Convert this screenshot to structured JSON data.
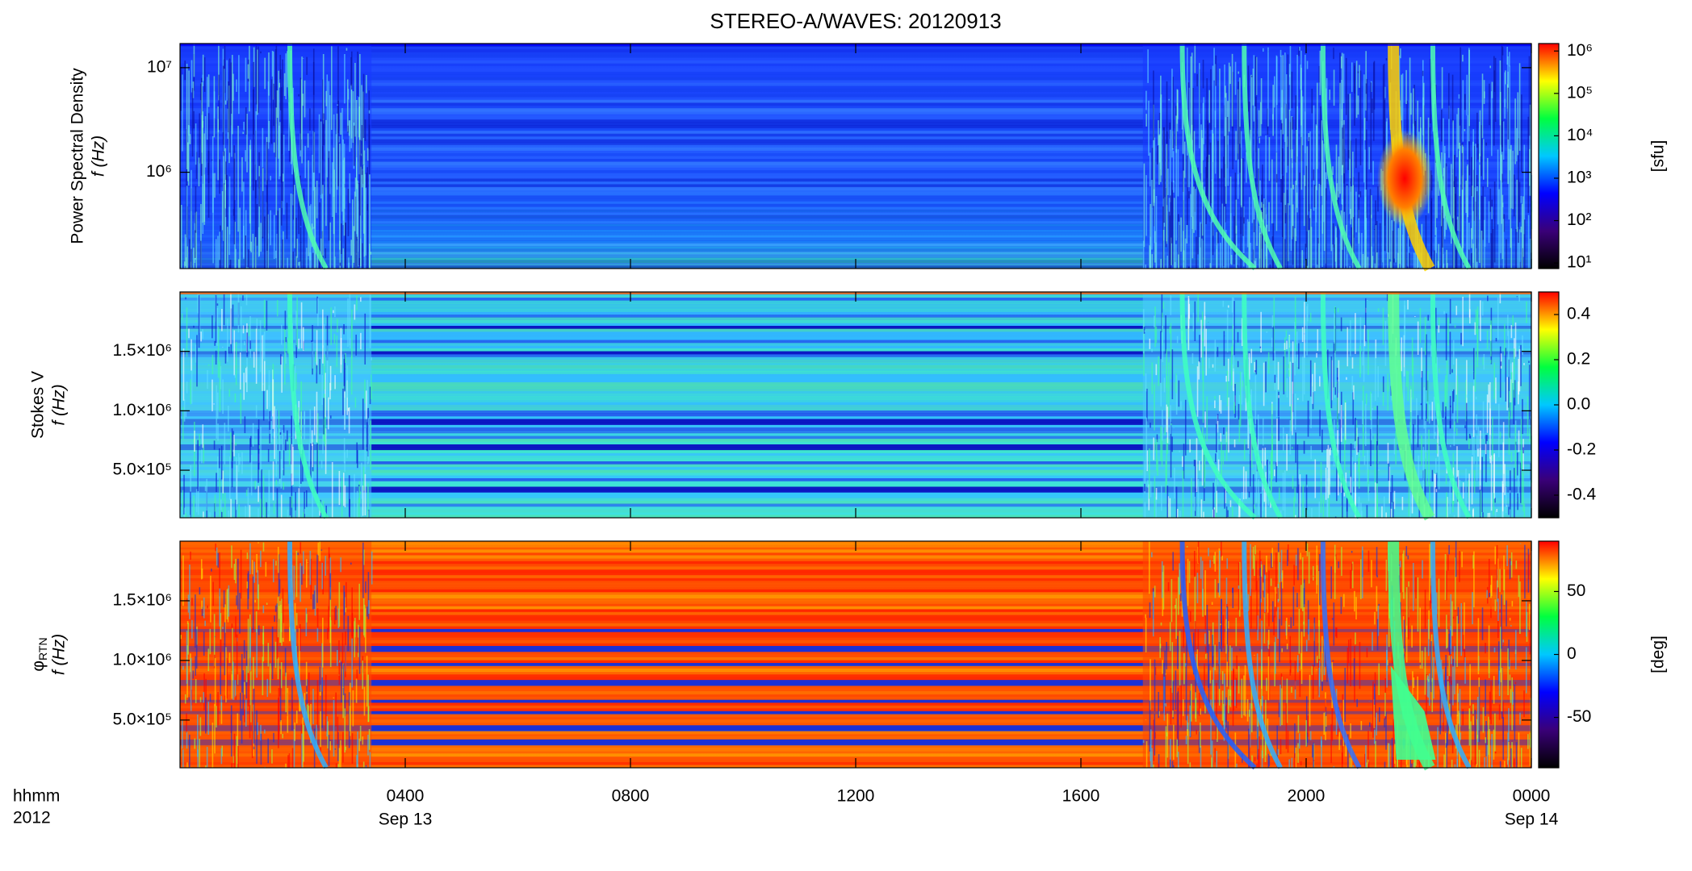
{
  "chart_data": [
    {
      "type": "heatmap",
      "title": "STEREO-A/WAVES: 20120913",
      "ylabel": [
        "Power Spectral Density",
        "f (Hz)"
      ],
      "ylog": true,
      "ylim": [
        120000,
        17000000
      ],
      "yticks": [
        {
          "value": 1000000,
          "label": "10⁶"
        },
        {
          "value": 10000000,
          "label": "10⁷"
        }
      ],
      "clog": true,
      "clim": [
        7.4,
        1500000
      ],
      "cticks": [
        {
          "value": 10,
          "label": "10¹"
        },
        {
          "value": 100,
          "label": "10²"
        },
        {
          "value": 1000,
          "label": "10³"
        },
        {
          "value": 10000,
          "label": "10⁴"
        },
        {
          "value": 100000,
          "label": "10⁵"
        },
        {
          "value": 1000000,
          "label": "10⁶"
        }
      ],
      "clabel": "[sfu]",
      "colormap": [
        "#000000",
        "#3a0078",
        "#0000ff",
        "#00c8ff",
        "#00ff40",
        "#ffff00",
        "#ff0000"
      ]
    },
    {
      "type": "heatmap",
      "ylabel": [
        "Stokes V",
        "f (Hz)"
      ],
      "ylim": [
        100000,
        2000000
      ],
      "yticks": [
        {
          "value": 500000,
          "label": "5.0×10⁵"
        },
        {
          "value": 1000000,
          "label": "1.0×10⁶"
        },
        {
          "value": 1500000,
          "label": "1.5×10⁶"
        }
      ],
      "clim": [
        -0.5,
        0.5
      ],
      "cticks": [
        -0.4,
        -0.2,
        {
          "value": 0,
          "label": "0.0"
        },
        0.2,
        0.4
      ],
      "colormap": [
        "#000000",
        "#3a0078",
        "#0000ff",
        "#00c8ff",
        "#00ff40",
        "#ffff00",
        "#ff0000"
      ]
    },
    {
      "type": "heatmap",
      "ylabel_symbol": "φ",
      "ylabel_subscript": "RTN",
      "ylabel": [
        "f (Hz)"
      ],
      "ylim": [
        100000,
        2000000
      ],
      "yticks": [
        {
          "value": 500000,
          "label": "5.0×10⁵"
        },
        {
          "value": 1000000,
          "label": "1.0×10⁶"
        },
        {
          "value": 1500000,
          "label": "1.5×10⁶"
        }
      ],
      "clim": [
        -90,
        90
      ],
      "cticks": [
        -50,
        0,
        50
      ],
      "clabel": "[deg]",
      "colormap": [
        "#000000",
        "#3a0078",
        "#0000ff",
        "#00c8ff",
        "#00ff40",
        "#ffff00",
        "#ff0000"
      ],
      "xlim": [
        0,
        24
      ],
      "xticks": [
        {
          "value": 4,
          "label": "0400"
        },
        {
          "value": 8,
          "label": "0800"
        },
        {
          "value": 12,
          "label": "1200"
        },
        {
          "value": 16,
          "label": "1600"
        },
        {
          "value": 20,
          "label": "2000"
        },
        {
          "value": 24,
          "label": "0000"
        }
      ],
      "xdate_labels": [
        {
          "value": 4,
          "label": "Sep 13"
        },
        {
          "value": 24,
          "label": "Sep 14"
        }
      ],
      "xlabel": [
        "hhmm",
        "2012"
      ]
    }
  ]
}
